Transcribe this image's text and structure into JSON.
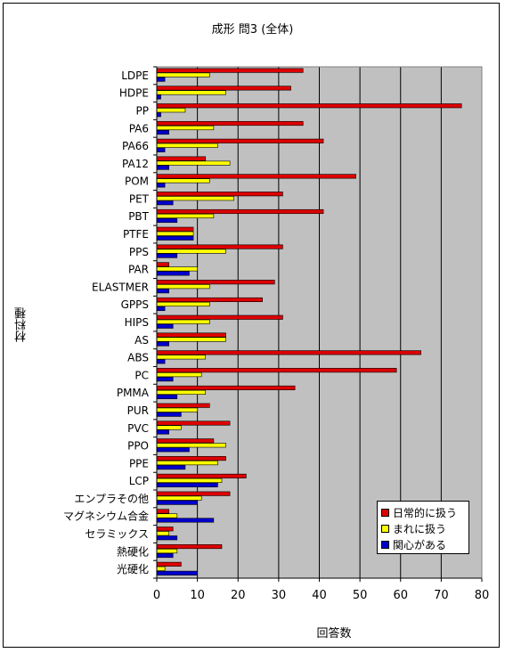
{
  "chart_data": {
    "type": "bar",
    "orientation": "horizontal",
    "title": "成形 問3 (全体)",
    "xlabel": "回答数",
    "ylabel": "材料種",
    "xlim": [
      0,
      80
    ],
    "xticks": [
      0,
      10,
      20,
      30,
      40,
      50,
      60,
      70,
      80
    ],
    "grid": true,
    "legend_position": "bottom-right",
    "categories": [
      "LDPE",
      "HDPE",
      "PP",
      "PA6",
      "PA66",
      "PA12",
      "POM",
      "PET",
      "PBT",
      "PTFE",
      "PPS",
      "PAR",
      "ELASTMER",
      "GPPS",
      "HIPS",
      "AS",
      "ABS",
      "PC",
      "PMMA",
      "PUR",
      "PVC",
      "PPO",
      "PPE",
      "LCP",
      "エンプラその他",
      "マグネシウム合金",
      "セラミックス",
      "熱硬化",
      "光硬化"
    ],
    "series": [
      {
        "name": "日常的に扱う",
        "color": "#dd0000",
        "values": [
          36,
          33,
          75,
          36,
          41,
          12,
          49,
          31,
          41,
          9,
          31,
          3,
          29,
          26,
          31,
          17,
          65,
          59,
          34,
          13,
          18,
          14,
          17,
          22,
          18,
          3,
          4,
          16,
          6
        ]
      },
      {
        "name": "まれに扱う",
        "color": "#ffff00",
        "values": [
          13,
          17,
          7,
          14,
          15,
          18,
          13,
          19,
          14,
          9,
          17,
          10,
          13,
          13,
          13,
          17,
          12,
          11,
          12,
          10,
          6,
          17,
          15,
          16,
          11,
          5,
          3,
          5,
          2
        ]
      },
      {
        "name": "関心がある",
        "color": "#0000cc",
        "values": [
          2,
          1,
          1,
          3,
          2,
          3,
          2,
          4,
          5,
          9,
          5,
          8,
          3,
          2,
          4,
          3,
          2,
          4,
          5,
          6,
          3,
          8,
          7,
          15,
          10,
          14,
          5,
          4,
          10
        ]
      }
    ]
  }
}
